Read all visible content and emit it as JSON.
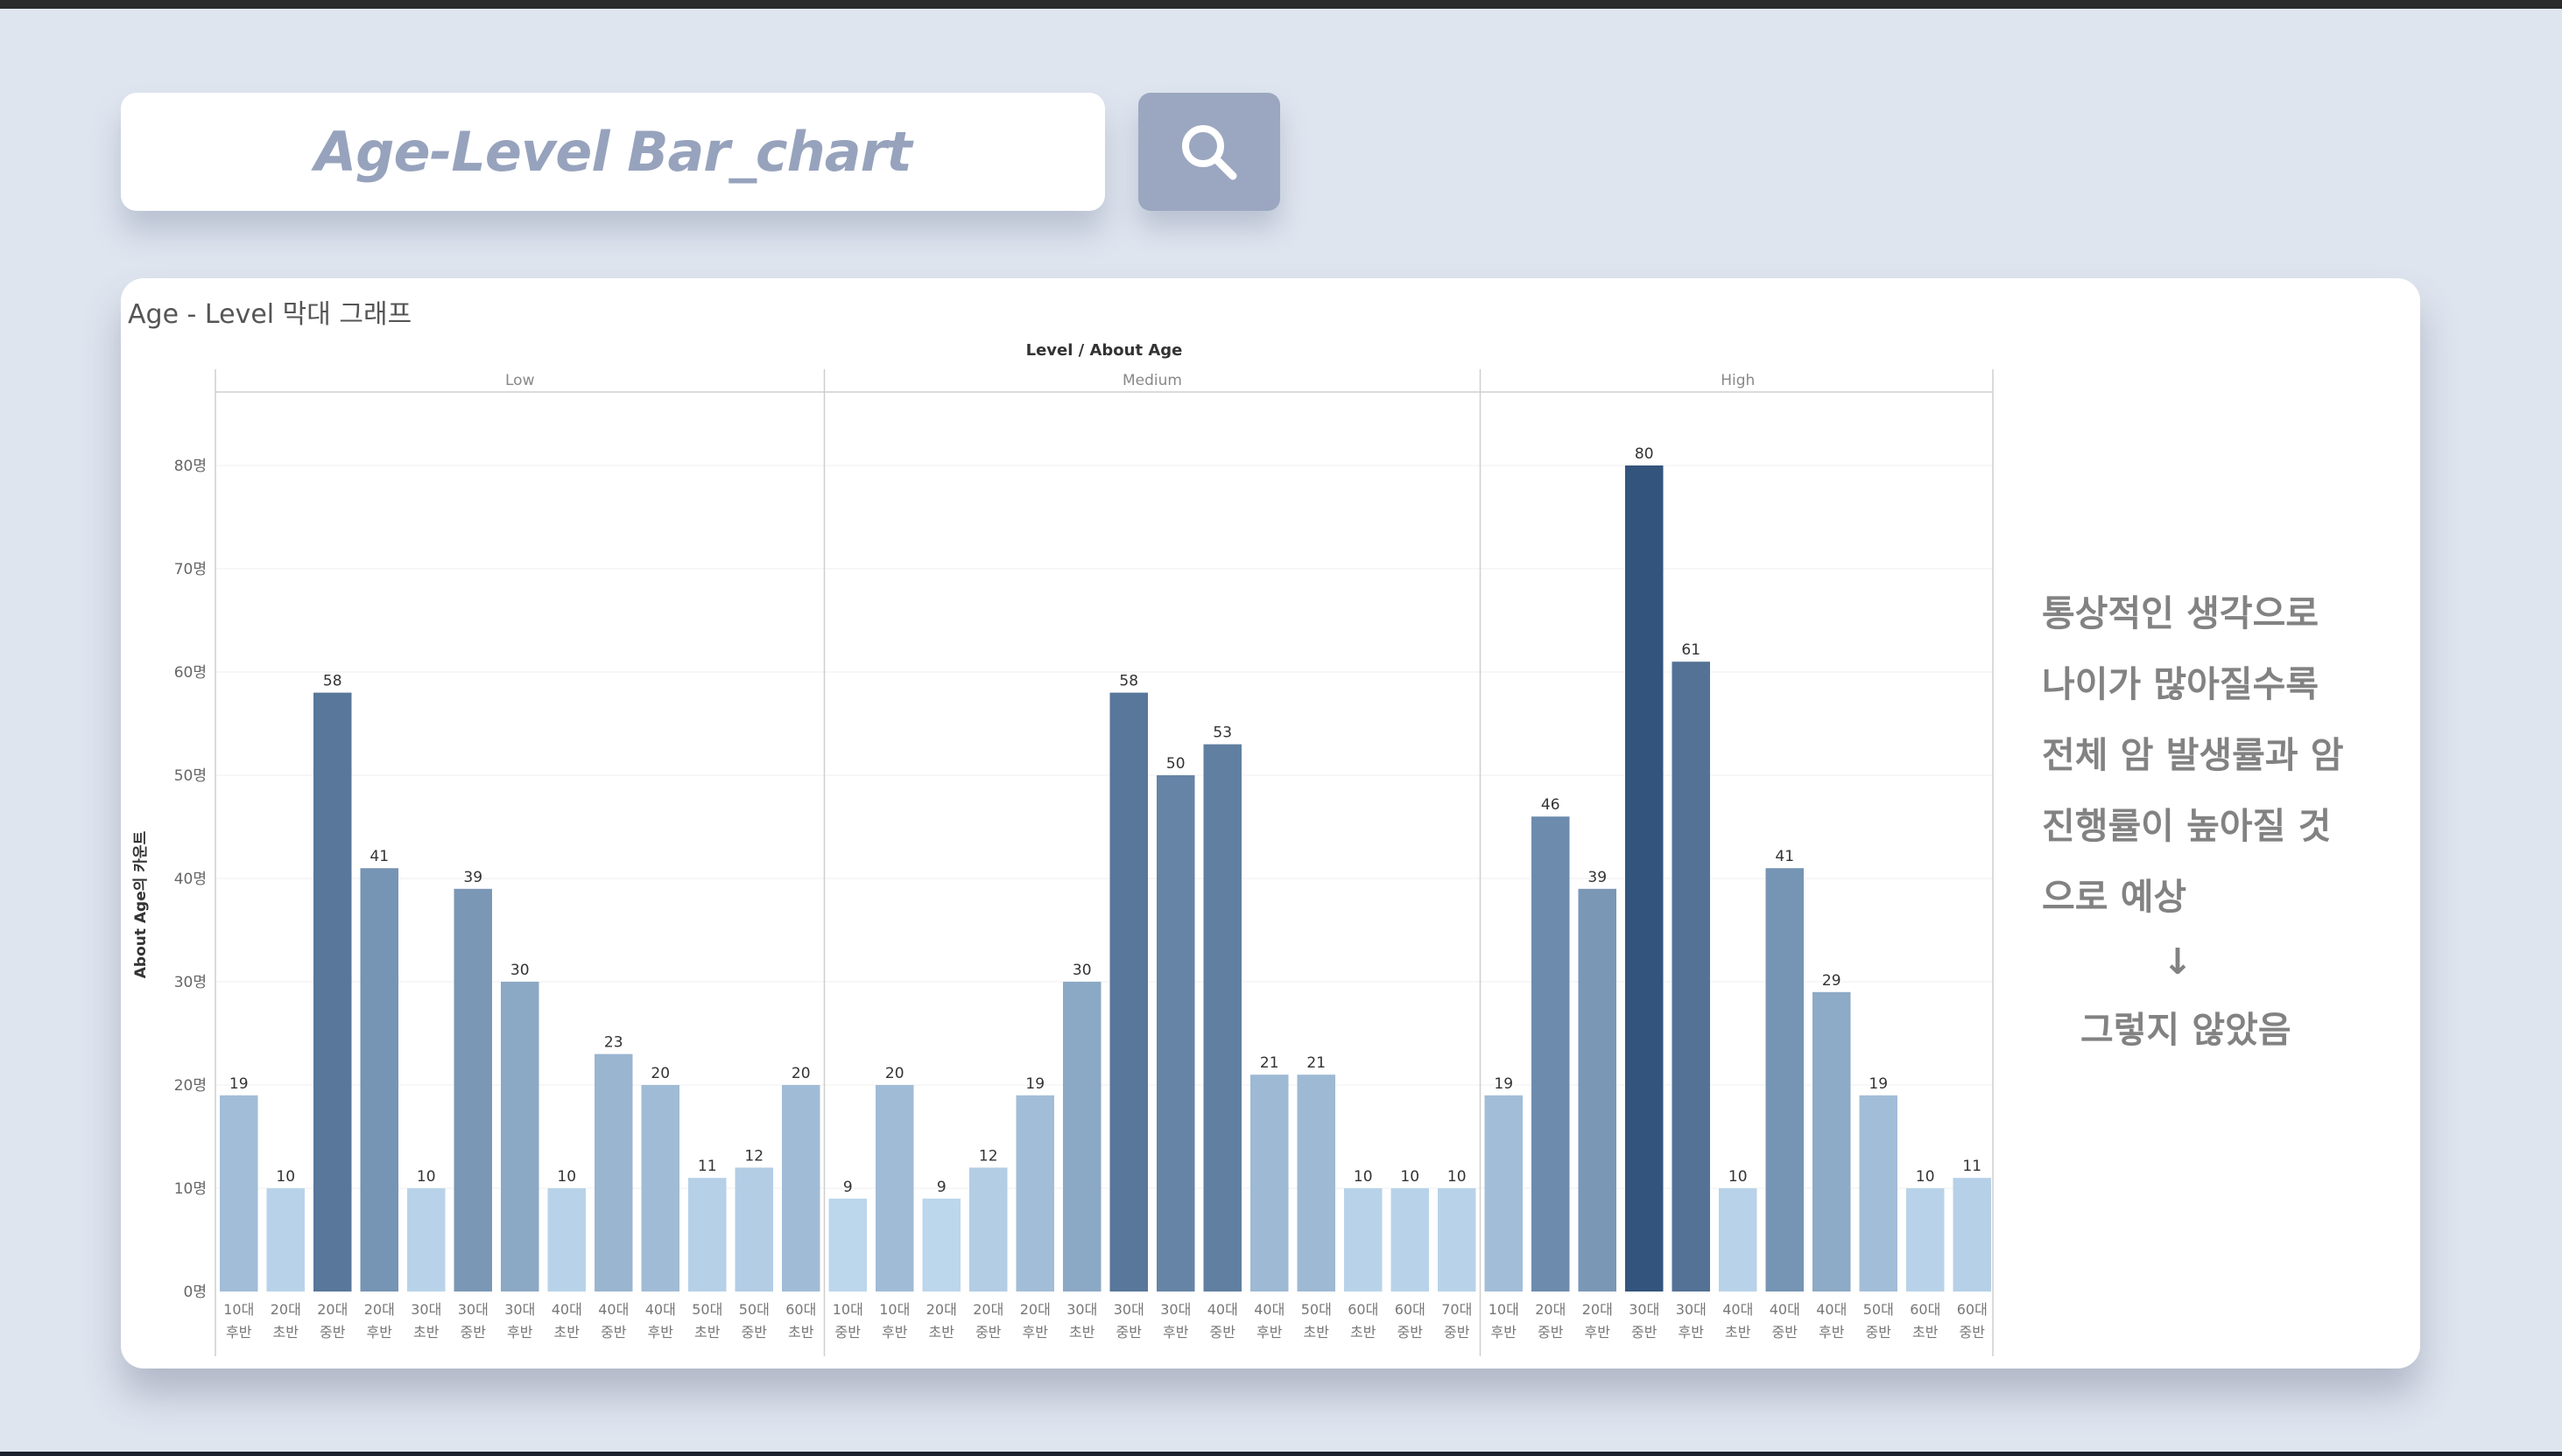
{
  "search": {
    "text": "Age-Level Bar_chart",
    "icon": "search-icon"
  },
  "card": {
    "title": "Age - Level 막대 그래프"
  },
  "note": {
    "lines": [
      "통상적인 생각으로",
      "나이가 많아질수록",
      "전체 암 발생률과 암",
      "진행률이 높아질 것",
      "으로 예상"
    ],
    "arrow": "↓",
    "conclusion": "그렇지 않았음"
  },
  "chart_data": {
    "type": "bar",
    "title": "Level / About Age",
    "ylabel": "About Age의 카운트",
    "ylim": [
      0,
      85
    ],
    "yticks": [
      0,
      10,
      20,
      30,
      40,
      50,
      60,
      70,
      80
    ],
    "ytick_suffix": "명",
    "grid": true,
    "panels": [
      {
        "name": "Low",
        "categories": [
          "10대 후반",
          "20대 초반",
          "20대 중반",
          "20대 후반",
          "30대 초반",
          "30대 중반",
          "30대 후반",
          "40대 초반",
          "40대 중반",
          "40대 후반",
          "50대 초반",
          "50대 중반",
          "60대 초반"
        ],
        "values": [
          19,
          10,
          58,
          41,
          10,
          39,
          30,
          10,
          23,
          20,
          11,
          12,
          20
        ]
      },
      {
        "name": "Medium",
        "categories": [
          "10대 중반",
          "10대 후반",
          "20대 초반",
          "20대 중반",
          "20대 후반",
          "30대 초반",
          "30대 중반",
          "30대 후반",
          "40대 중반",
          "40대 후반",
          "50대 초반",
          "60대 초반",
          "60대 중반",
          "70대 중반"
        ],
        "values": [
          9,
          20,
          9,
          12,
          19,
          30,
          58,
          50,
          53,
          21,
          21,
          10,
          10,
          10
        ]
      },
      {
        "name": "High",
        "categories": [
          "10대 후반",
          "20대 중반",
          "20대 후반",
          "30대 중반",
          "30대 후반",
          "40대 초반",
          "40대 중반",
          "40대 후반",
          "50대 중반",
          "60대 초반",
          "60대 중반"
        ],
        "values": [
          19,
          46,
          39,
          80,
          61,
          10,
          41,
          29,
          19,
          10,
          11
        ]
      }
    ],
    "color_scale": {
      "low": "#bcd6ec",
      "high": "#33547c"
    }
  }
}
